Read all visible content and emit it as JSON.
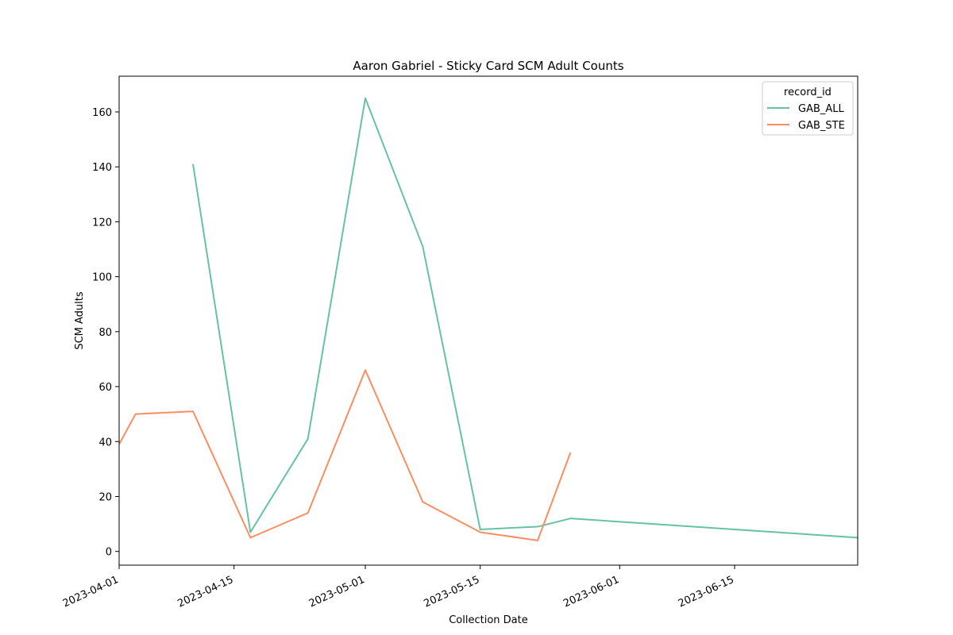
{
  "chart_data": {
    "type": "line",
    "title": "Aaron Gabriel - Sticky Card SCM Adult Counts",
    "xlabel": "Collection Date",
    "ylabel": "SCM Adults",
    "x_type": "date",
    "xlim": [
      "2023-04-01",
      "2023-06-30"
    ],
    "ylim": [
      -5,
      173
    ],
    "x_ticks": [
      "2023-04-01",
      "2023-04-15",
      "2023-05-01",
      "2023-05-15",
      "2023-06-01",
      "2023-06-15"
    ],
    "y_ticks": [
      0,
      20,
      40,
      60,
      80,
      100,
      120,
      140,
      160
    ],
    "grid": false,
    "legend": {
      "title": "record_id",
      "placement": "top-right"
    },
    "series": [
      {
        "name": "GAB_ALL",
        "color": "#66c2a5",
        "points": [
          {
            "x": "2023-04-10",
            "y": 141
          },
          {
            "x": "2023-04-17",
            "y": 7
          },
          {
            "x": "2023-04-24",
            "y": 41
          },
          {
            "x": "2023-05-01",
            "y": 165
          },
          {
            "x": "2023-05-08",
            "y": 111
          },
          {
            "x": "2023-05-15",
            "y": 8
          },
          {
            "x": "2023-05-22",
            "y": 9
          },
          {
            "x": "2023-05-26",
            "y": 12
          },
          {
            "x": "2023-06-30",
            "y": 5
          }
        ]
      },
      {
        "name": "GAB_STE",
        "color": "#fc8d62",
        "points": [
          {
            "x": "2023-04-01",
            "y": 39
          },
          {
            "x": "2023-04-03",
            "y": 50
          },
          {
            "x": "2023-04-10",
            "y": 51
          },
          {
            "x": "2023-04-17",
            "y": 5
          },
          {
            "x": "2023-04-24",
            "y": 14
          },
          {
            "x": "2023-05-01",
            "y": 66
          },
          {
            "x": "2023-05-08",
            "y": 18
          },
          {
            "x": "2023-05-15",
            "y": 7
          },
          {
            "x": "2023-05-22",
            "y": 4
          },
          {
            "x": "2023-05-26",
            "y": 36
          }
        ]
      }
    ]
  }
}
